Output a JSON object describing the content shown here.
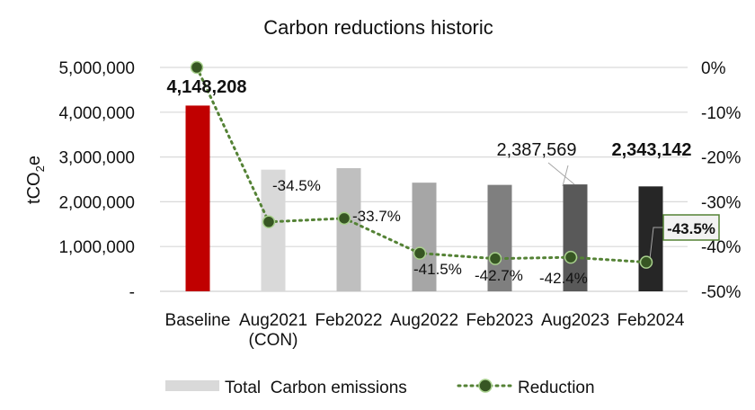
{
  "chart_data": {
    "type": "bar+line",
    "title": "Carbon reductions historic",
    "ylabel": "tCO2e",
    "ylabel_main": "tCO",
    "ylabel_sub": "2",
    "ylabel_tail": "e",
    "ylim": [
      0,
      5000000
    ],
    "y2lim": [
      -50,
      0
    ],
    "yticks": [
      "-",
      "1,000,000",
      "2,000,000",
      "3,000,000",
      "4,000,000",
      "5,000,000"
    ],
    "y2ticks": [
      "-50%",
      "-40%",
      "-30%",
      "-20%",
      "-10%",
      "0%"
    ],
    "grid": true,
    "legend_position": "bottom",
    "categories": [
      "Baseline",
      "Aug2021 (CON)",
      "Feb2022",
      "Aug2022",
      "Feb2023",
      "Aug2023",
      "Feb2024"
    ],
    "category_lines": [
      [
        "Baseline"
      ],
      [
        "Aug2021",
        "(CON)"
      ],
      [
        "Feb2022"
      ],
      [
        "Aug2022"
      ],
      [
        "Feb2023"
      ],
      [
        "Aug2023"
      ],
      [
        "Feb2024"
      ]
    ],
    "series": [
      {
        "name": "Total  Carbon emissions",
        "type": "bar",
        "values": [
          4148208,
          2717076,
          2750262,
          2426702,
          2376923,
          2387569,
          2343142
        ],
        "colors": [
          "#c00000",
          "#d9d9d9",
          "#bfbfbf",
          "#a6a6a6",
          "#7f7f7f",
          "#595959",
          "#262626"
        ],
        "data_labels": [
          "4,148,208",
          "",
          "",
          "",
          "",
          "2,387,569",
          "2,343,142"
        ]
      },
      {
        "name": "Reduction",
        "type": "line",
        "axis": "secondary",
        "values": [
          0,
          -34.5,
          -33.7,
          -41.5,
          -42.7,
          -42.4,
          -43.5
        ],
        "color": "#375623",
        "line_color": "#548235",
        "data_labels": [
          "",
          "-34.5%",
          "-33.7%",
          "-41.5%",
          "-42.7%",
          "-42.4%",
          "-43.5%"
        ]
      }
    ]
  }
}
